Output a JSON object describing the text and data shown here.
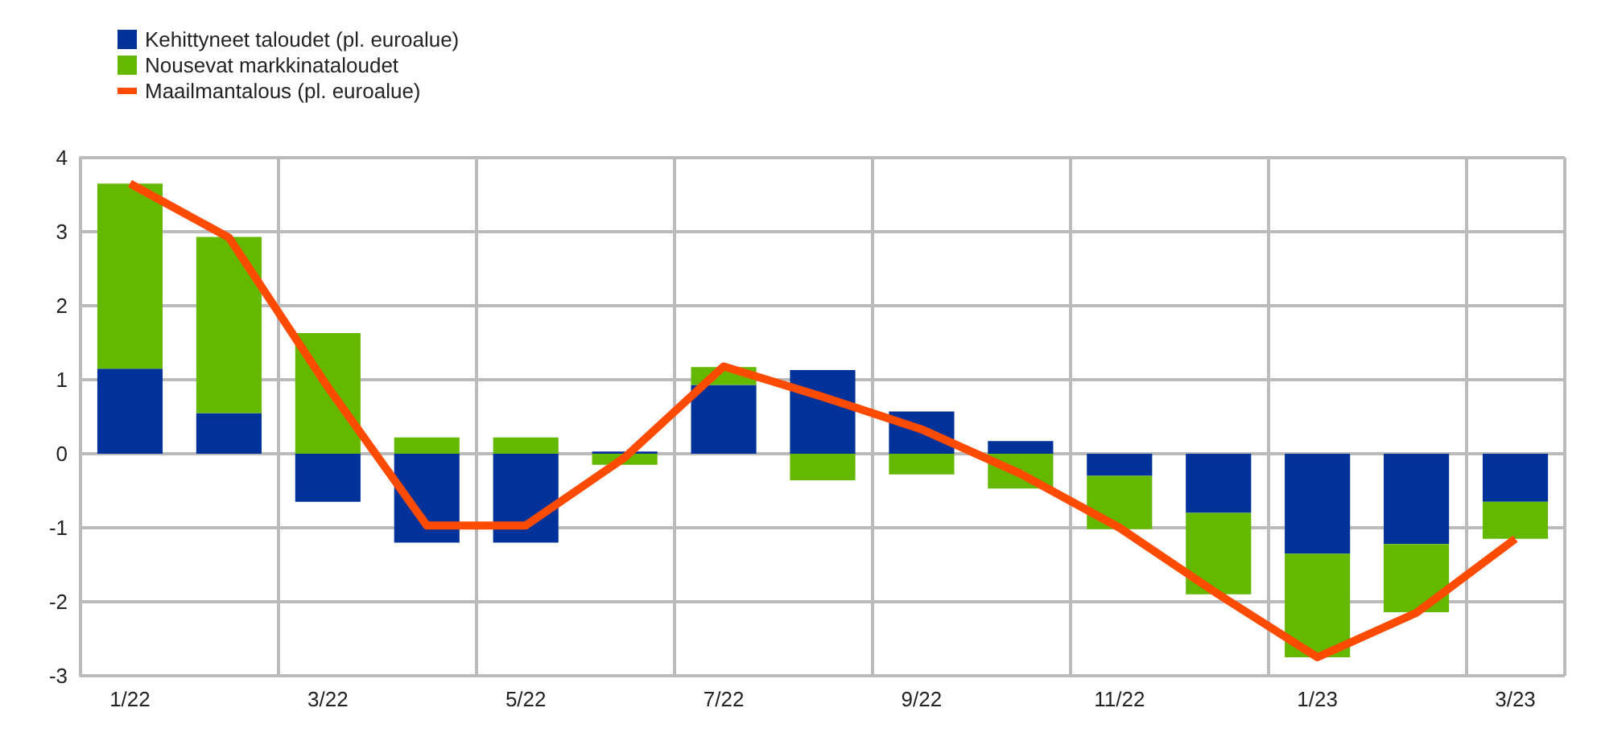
{
  "chart_data": {
    "type": "bar",
    "stacked": true,
    "categories": [
      "1/22",
      null,
      "3/22",
      null,
      "5/22",
      null,
      "7/22",
      null,
      "9/22",
      null,
      "11/22",
      null,
      "1/23",
      null,
      "3/23"
    ],
    "series": [
      {
        "name": "Kehittyneet taloudet (pl. euroalue)",
        "color": "#003299",
        "values": [
          1.15,
          0.55,
          -0.65,
          -1.2,
          -1.2,
          0.03,
          0.93,
          1.13,
          0.57,
          0.17,
          -0.3,
          -0.8,
          -1.35,
          -1.22,
          -0.65
        ]
      },
      {
        "name": "Nousevat markkinataloudet",
        "color": "#65b800",
        "values": [
          2.5,
          2.38,
          1.63,
          0.22,
          0.22,
          -0.15,
          0.24,
          -0.36,
          -0.28,
          -0.47,
          -0.72,
          -1.1,
          -1.4,
          -0.92,
          -0.5
        ]
      },
      {
        "name": "Maailmantalous (pl. euroalue)",
        "type": "line",
        "color": "#ff4b00",
        "values": [
          3.65,
          2.92,
          0.9,
          -0.97,
          -0.97,
          -0.05,
          1.18,
          0.77,
          0.33,
          -0.27,
          -1.0,
          -1.9,
          -2.75,
          -2.15,
          -1.15
        ]
      }
    ],
    "ylim": [
      -3,
      4
    ],
    "yticks": [
      -3,
      -2,
      -1,
      0,
      1,
      2,
      3,
      4
    ],
    "grid": true,
    "legend": "top left",
    "marker": "none"
  }
}
